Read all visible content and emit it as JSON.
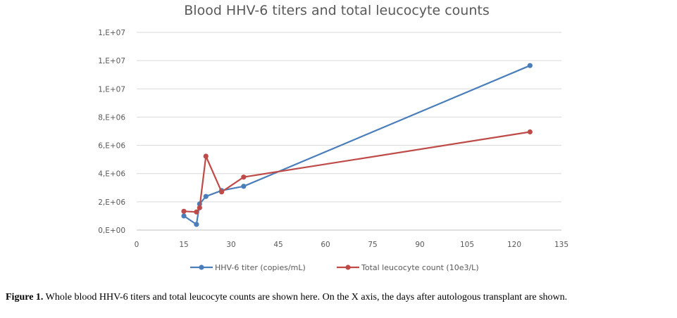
{
  "chart_data": {
    "type": "line",
    "title": "Blood HHV-6 titers and total leucocyte counts",
    "xlabel": "",
    "ylabel": "",
    "xlim": [
      0,
      135
    ],
    "ylim": [
      0,
      14000000
    ],
    "x_ticks": [
      "0",
      "15",
      "30",
      "45",
      "60",
      "75",
      "90",
      "105",
      "120",
      "135"
    ],
    "y_ticks": [
      "0,E+00",
      "2,E+06",
      "4,E+06",
      "6,E+06",
      "8,E+06",
      "1,E+07",
      "1,E+07",
      "1,E+07"
    ],
    "grid": "horizontal",
    "legend_position": "bottom",
    "series": [
      {
        "name": "HHV-6 titer (copies/mL)",
        "color": "#4a7ebb",
        "x": [
          15,
          19,
          20,
          22,
          27,
          34,
          125
        ],
        "y": [
          1000000,
          400000,
          1850000,
          2380000,
          2800000,
          3100000,
          11650000
        ]
      },
      {
        "name": "Total leucocyte count (10e3/L)",
        "color": "#be4b48",
        "x": [
          15,
          19,
          20,
          22,
          27,
          34,
          125
        ],
        "y": [
          1330000,
          1280000,
          1580000,
          5230000,
          2700000,
          3750000,
          6950000
        ]
      }
    ]
  },
  "caption": {
    "label": "Figure 1.",
    "text": " Whole blood HHV-6 titers and total leucocyte counts are shown here. On the X axis, the days after autologous transplant are shown."
  }
}
